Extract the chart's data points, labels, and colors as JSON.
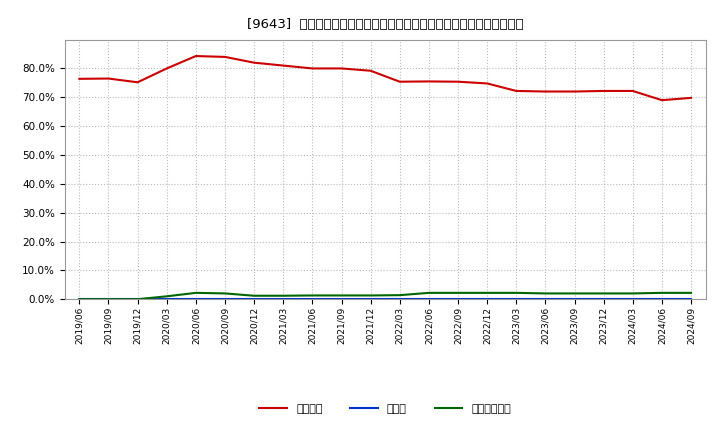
{
  "title": "[9643]  自己資本、のれん、繰延税金資産の総資産に対する比率の推移",
  "x_labels": [
    "2019/06",
    "2019/09",
    "2019/12",
    "2020/03",
    "2020/06",
    "2020/09",
    "2020/12",
    "2021/03",
    "2021/06",
    "2021/09",
    "2021/12",
    "2022/03",
    "2022/06",
    "2022/09",
    "2022/12",
    "2023/03",
    "2023/06",
    "2023/09",
    "2023/12",
    "2024/03",
    "2024/06",
    "2024/09"
  ],
  "equity": [
    0.764,
    0.765,
    0.752,
    0.8,
    0.843,
    0.84,
    0.82,
    0.81,
    0.8,
    0.8,
    0.792,
    0.754,
    0.755,
    0.754,
    0.748,
    0.722,
    0.72,
    0.72,
    0.722,
    0.722,
    0.69,
    0.698
  ],
  "noren": [
    0.0,
    0.0,
    0.0,
    0.0,
    0.0,
    0.0,
    0.0,
    0.0,
    0.0,
    0.0,
    0.0,
    0.0,
    0.0,
    0.0,
    0.0,
    0.0,
    0.0,
    0.0,
    0.0,
    0.0,
    0.0,
    0.0
  ],
  "deferred_tax": [
    0.0,
    0.0,
    0.0,
    0.01,
    0.022,
    0.02,
    0.012,
    0.012,
    0.013,
    0.013,
    0.013,
    0.014,
    0.022,
    0.022,
    0.022,
    0.022,
    0.02,
    0.02,
    0.02,
    0.02,
    0.022,
    0.022
  ],
  "equity_color": "#cc0000",
  "noren_color": "#0033cc",
  "deferred_tax_color": "#006600",
  "bg_color": "#ffffff",
  "plot_bg_color": "#ffffff",
  "grid_color": "#bbbbbb",
  "legend_labels": [
    "自己資本",
    "のれん",
    "繰延税金資産"
  ],
  "ylim": [
    0.0,
    0.9
  ],
  "yticks": [
    0.0,
    0.1,
    0.2,
    0.3,
    0.4,
    0.5,
    0.6,
    0.7,
    0.8
  ]
}
